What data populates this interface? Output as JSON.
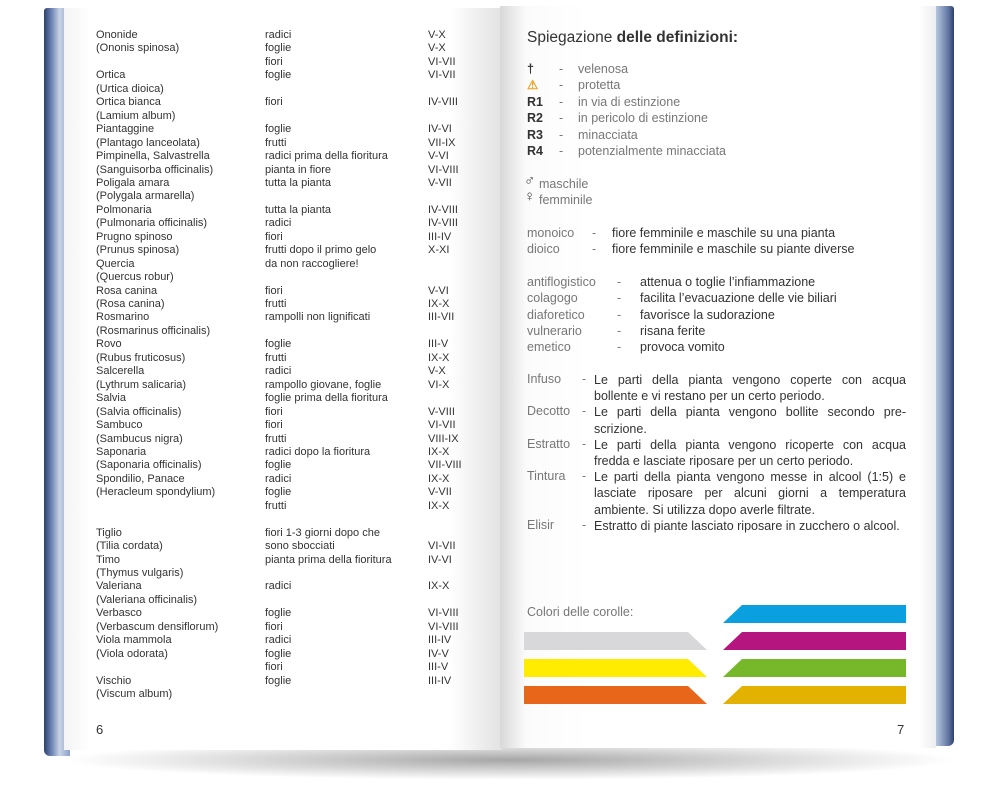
{
  "left_page": {
    "page_number": "6",
    "rows": [
      [
        "Ononide",
        "radici",
        "V-X"
      ],
      [
        "(Ononis spinosa)",
        "foglie",
        "V-X"
      ],
      [
        "",
        "fiori",
        "VI-VII"
      ],
      [
        "Ortica",
        "foglie",
        "VI-VII"
      ],
      [
        "(Urtica dioica)",
        "",
        ""
      ],
      [
        "Ortica bianca",
        "fiori",
        "IV-VIII"
      ],
      [
        "(Lamium album)",
        "",
        ""
      ],
      [
        "Piantaggine",
        "foglie",
        "IV-VI"
      ],
      [
        "(Plantago lanceolata)",
        "frutti",
        "VII-IX"
      ],
      [
        "Pimpinella, Salvastrella",
        "radici prima della fioritura",
        "V-VI"
      ],
      [
        "(Sanguisorba officinalis)",
        "pianta in fiore",
        "VI-VIII"
      ],
      [
        "Poligala amara",
        "tutta la pianta",
        "V-VII"
      ],
      [
        "(Polygala armarella)",
        "",
        ""
      ],
      [
        "Polmonaria",
        "tutta la pianta",
        "IV-VIII"
      ],
      [
        "(Pulmonaria officinalis)",
        "radici",
        "IV-VIII"
      ],
      [
        "Prugno spinoso",
        "fiori",
        "III-IV"
      ],
      [
        "(Prunus spinosa)",
        "frutti dopo il primo gelo",
        "X-XI"
      ],
      [
        "Quercia",
        "da non raccogliere!",
        ""
      ],
      [
        "(Quercus robur)",
        "",
        ""
      ],
      [
        "Rosa canina",
        "fiori",
        "V-VI"
      ],
      [
        "(Rosa canina)",
        "frutti",
        "IX-X"
      ],
      [
        "Rosmarino",
        "rampolli non lignificati",
        "III-VII"
      ],
      [
        "(Rosmarinus officinalis)",
        "",
        ""
      ],
      [
        "Rovo",
        "foglie",
        "III-V"
      ],
      [
        "(Rubus fruticosus)",
        "frutti",
        "IX-X"
      ],
      [
        "Salcerella",
        "radici",
        "V-X"
      ],
      [
        "(Lythrum salicaria)",
        "rampollo giovane, foglie",
        "VI-X"
      ],
      [
        "Salvia",
        "foglie prima della fioritura",
        ""
      ],
      [
        "(Salvia officinalis)",
        "fiori",
        "V-VIII"
      ],
      [
        "Sambuco",
        "fiori",
        "VI-VII"
      ],
      [
        "(Sambucus nigra)",
        "frutti",
        "VIII-IX"
      ],
      [
        "Saponaria",
        "radici dopo la fioritura",
        "IX-X"
      ],
      [
        "(Saponaria officinalis)",
        "foglie",
        "VII-VIII"
      ],
      [
        "Spondilio, Panace",
        "radici",
        "IX-X"
      ],
      [
        "(Heracleum spondylium)",
        "foglie",
        "V-VII"
      ],
      [
        "",
        "frutti",
        "IX-X"
      ],
      [
        "",
        "",
        ""
      ],
      [
        "Tiglio",
        "fiori 1-3 giorni dopo che",
        ""
      ],
      [
        "(Tilia cordata)",
        "sono sbocciati",
        "VI-VII"
      ],
      [
        "Timo",
        "pianta prima della fioritura",
        "IV-VI"
      ],
      [
        "(Thymus vulgaris)",
        "",
        ""
      ],
      [
        "Valeriana",
        "radici",
        "IX-X"
      ],
      [
        "(Valeriana officinalis)",
        "",
        ""
      ],
      [
        "Verbasco",
        "foglie",
        "VI-VIII"
      ],
      [
        "(Verbascum densiflorum)",
        "fiori",
        "VI-VIII"
      ],
      [
        "Viola mammola",
        "radici",
        "III-IV"
      ],
      [
        "(Viola odorata)",
        "foglie",
        "IV-V"
      ],
      [
        "",
        "fiori",
        "III-V"
      ],
      [
        "Vischio",
        "foglie",
        "III-IV"
      ],
      [
        "(Viscum album)",
        "",
        ""
      ]
    ]
  },
  "right_page": {
    "page_number": "7",
    "title_a": "Spiegazione",
    "title_b": " delle definizioni:",
    "symbols": [
      {
        "symbol": "†",
        "icon": "dagger-icon",
        "text": "velenosa"
      },
      {
        "symbol": "⚠",
        "icon": "warning-triangle-icon",
        "text": "protetta",
        "color": "#f0a020"
      },
      {
        "symbol": "R1",
        "text": "in via di estinzione"
      },
      {
        "symbol": "R2",
        "text": "in pericolo di estinzione"
      },
      {
        "symbol": "R3",
        "text": "minacciata"
      },
      {
        "symbol": "R4",
        "text": "potenzialmente minacciata"
      }
    ],
    "sex": [
      {
        "symbol": "♂",
        "icon": "male-icon",
        "text": "maschile"
      },
      {
        "symbol": "♀",
        "icon": "female-icon",
        "text": "femminile"
      }
    ],
    "plant_types": [
      {
        "term": "monoico",
        "text": "fiore femminile e maschile su una pianta"
      },
      {
        "term": "dioico",
        "text": "fiore femminile e maschile su piante diverse"
      }
    ],
    "properties": [
      {
        "term": "antiflogistico",
        "text": "attenua o toglie l’infiammazione"
      },
      {
        "term": "colagogo",
        "text": "facilita l’evacuazione delle vie biliari"
      },
      {
        "term": "diaforetico",
        "text": "favorisce la sudorazione"
      },
      {
        "term": "vulnerario",
        "text": "risana ferite"
      },
      {
        "term": "emetico",
        "text": "provoca vomito"
      }
    ],
    "preparations": [
      {
        "term": "Infuso",
        "text": "Le parti della pianta vengono coperte con acqua bollente e vi restano per un certo periodo.",
        "lines": 2
      },
      {
        "term": "Decotto",
        "text": "Le parti della pianta vengono bollite secondo pre-scrizione.",
        "lines": 2
      },
      {
        "term": "Estratto",
        "text": "Le parti della pianta vengono ricoperte con acqua fredda e lasciate riposare per un certo periodo.",
        "lines": 2
      },
      {
        "term": "Tintura",
        "text": "Le parti della pianta vengono messe in alcool (1:5) e lasciate riposare per alcuni giorni a temperatura ambiente. Si utilizza dopo averle filtrate.",
        "lines": 3
      },
      {
        "term": "Elisir",
        "text": "Estratto di piante lasciato riposare in zucchero o alcool.",
        "lines": 2
      }
    ],
    "dash": "-",
    "colors_label": "Colori delle corolle:",
    "corolla_colors": {
      "left": [
        "#d8d8da",
        "#ffec00",
        "#e8661a"
      ],
      "right": [
        "#0aa0e0",
        "#b5157e",
        "#76b82a",
        "#e3b100"
      ]
    }
  }
}
